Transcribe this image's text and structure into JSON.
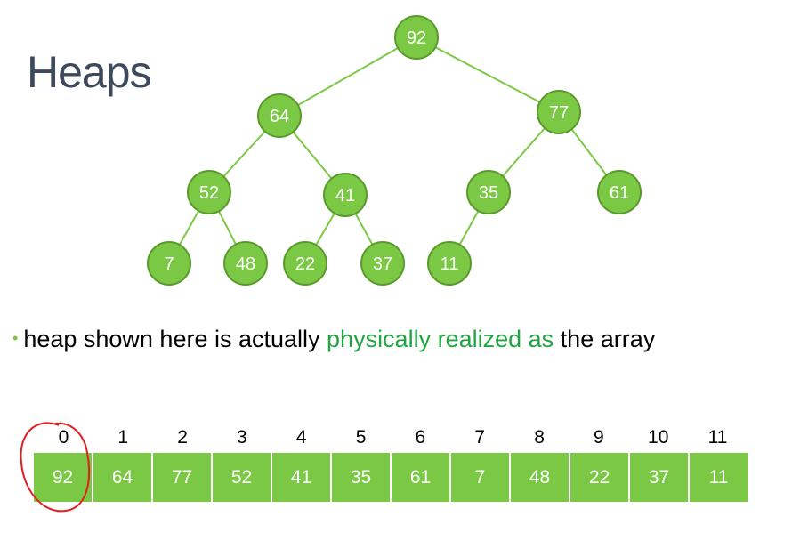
{
  "slide": {
    "title": "Heaps",
    "bullet": {
      "before": "heap shown here is actually",
      "highlight": "physically realized as",
      "after": "the array"
    }
  },
  "tree": {
    "nodes": [
      "92",
      "64",
      "77",
      "52",
      "41",
      "35",
      "61",
      "7",
      "48",
      "22",
      "37",
      "11"
    ]
  },
  "array": {
    "indices": [
      "0",
      "1",
      "2",
      "3",
      "4",
      "5",
      "6",
      "7",
      "8",
      "9",
      "10",
      "11"
    ],
    "values": [
      "92",
      "64",
      "77",
      "52",
      "41",
      "35",
      "61",
      "7",
      "48",
      "22",
      "37",
      "11"
    ]
  },
  "colors": {
    "node_fill": "#7ac843",
    "node_stroke": "#5a9a2c",
    "array_fill": "#7ac843",
    "highlight_text": "#21a542",
    "annotation": "#e02020",
    "title": "#3d4a5c"
  }
}
